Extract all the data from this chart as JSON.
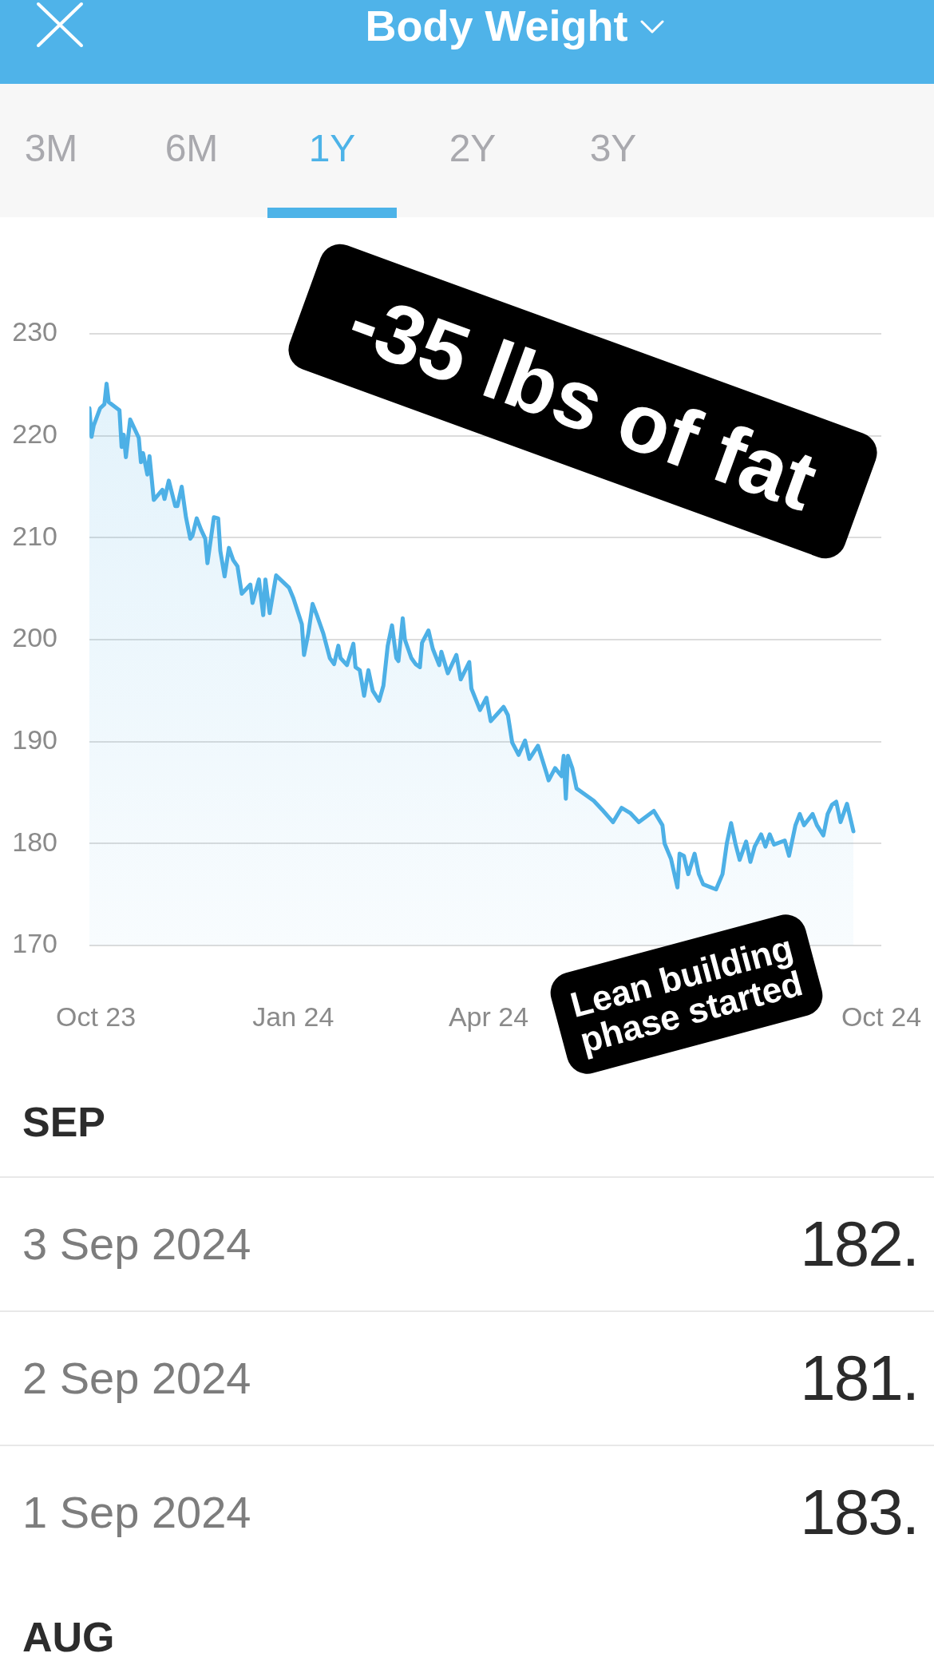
{
  "chart_data": {
    "type": "area",
    "title": "Body Weight",
    "x": [
      "2023-09-28",
      "2023-09-29",
      "2023-09-30",
      "2023-10-03",
      "2023-10-05",
      "2023-10-06",
      "2023-10-07",
      "2023-10-12",
      "2023-10-13",
      "2023-10-14",
      "2023-10-15",
      "2023-10-17",
      "2023-10-21",
      "2023-10-22",
      "2023-10-23",
      "2023-10-25",
      "2023-10-26",
      "2023-10-28",
      "2023-11-01",
      "2023-11-02",
      "2023-11-04",
      "2023-11-07",
      "2023-11-08",
      "2023-11-10",
      "2023-11-12",
      "2023-11-14",
      "2023-11-15",
      "2023-11-17",
      "2023-11-19",
      "2023-11-21",
      "2023-11-22",
      "2023-11-23",
      "2023-11-25",
      "2023-11-27",
      "2023-11-28",
      "2023-11-30",
      "2023-12-02",
      "2023-12-04",
      "2023-12-06",
      "2023-12-08",
      "2023-12-12",
      "2023-12-13",
      "2023-12-16",
      "2023-12-18",
      "2023-12-19",
      "2023-12-21",
      "2023-12-24",
      "2023-12-30",
      "2024-01-01",
      "2024-01-05",
      "2024-01-06",
      "2024-01-08",
      "2024-01-10",
      "2024-01-12",
      "2024-01-15",
      "2024-01-18",
      "2024-01-20",
      "2024-01-22",
      "2024-01-23",
      "2024-01-26",
      "2024-01-29",
      "2024-01-30",
      "2024-02-01",
      "2024-02-03",
      "2024-02-05",
      "2024-02-07",
      "2024-02-10",
      "2024-02-12",
      "2024-02-14",
      "2024-02-16",
      "2024-02-18",
      "2024-02-19",
      "2024-02-21",
      "2024-02-22",
      "2024-02-25",
      "2024-02-27",
      "2024-02-29",
      "2024-03-01",
      "2024-03-04",
      "2024-03-06",
      "2024-03-09",
      "2024-03-10",
      "2024-03-13",
      "2024-03-17",
      "2024-03-19",
      "2024-03-23",
      "2024-03-24",
      "2024-03-28",
      "2024-03-31",
      "2024-04-02",
      "2024-04-08",
      "2024-04-10",
      "2024-04-12",
      "2024-04-15",
      "2024-04-18",
      "2024-04-20",
      "2024-04-24",
      "2024-04-28",
      "2024-04-29",
      "2024-05-02",
      "2024-05-05",
      "2024-05-06",
      "2024-05-07",
      "2024-05-08",
      "2024-05-10",
      "2024-05-12",
      "2024-05-20",
      "2024-05-24",
      "2024-05-29",
      "2024-06-02",
      "2024-06-06",
      "2024-06-10",
      "2024-06-17",
      "2024-06-21",
      "2024-06-22",
      "2024-06-25",
      "2024-06-28",
      "2024-06-29",
      "2024-07-01",
      "2024-07-03",
      "2024-07-06",
      "2024-07-08",
      "2024-07-10",
      "2024-07-16",
      "2024-07-19",
      "2024-07-21",
      "2024-07-23",
      "2024-07-25",
      "2024-07-27",
      "2024-07-30",
      "2024-08-01",
      "2024-08-03",
      "2024-08-06",
      "2024-08-08",
      "2024-08-10",
      "2024-08-12",
      "2024-08-17",
      "2024-08-19",
      "2024-08-22",
      "2024-08-24",
      "2024-08-26",
      "2024-08-30",
      "2024-09-01",
      "2024-09-04",
      "2024-09-06",
      "2024-09-08",
      "2024-09-10",
      "2024-09-12",
      "2024-09-15",
      "2024-09-18"
    ],
    "values": [
      222.7,
      219.9,
      221.0,
      222.7,
      223.1,
      225.1,
      223.3,
      222.5,
      218.9,
      220.1,
      217.9,
      221.6,
      219.8,
      217.4,
      218.3,
      216.2,
      218.0,
      213.7,
      214.7,
      213.8,
      215.6,
      213.1,
      213.1,
      215.0,
      212.0,
      209.9,
      210.2,
      211.9,
      210.8,
      209.9,
      207.5,
      209.0,
      212.0,
      211.9,
      208.7,
      206.2,
      209.0,
      207.8,
      207.2,
      204.5,
      205.4,
      203.6,
      205.9,
      202.4,
      205.9,
      202.6,
      206.3,
      205.1,
      204.1,
      201.5,
      198.5,
      200.6,
      203.5,
      202.4,
      200.6,
      198.2,
      197.6,
      199.4,
      198.2,
      197.5,
      199.6,
      197.3,
      197.0,
      194.5,
      197.0,
      195.0,
      194.0,
      195.5,
      199.4,
      201.4,
      198.2,
      197.9,
      202.1,
      200.0,
      198.2,
      197.6,
      197.3,
      199.7,
      200.9,
      199.1,
      197.5,
      198.8,
      196.7,
      198.5,
      196.1,
      197.8,
      195.2,
      193.1,
      194.3,
      192.0,
      193.4,
      192.6,
      189.9,
      188.7,
      190.1,
      188.3,
      189.6,
      186.9,
      186.2,
      187.4,
      186.6,
      188.6,
      184.4,
      188.6,
      187.4,
      185.4,
      184.2,
      183.3,
      182.1,
      183.5,
      183.0,
      182.1,
      183.2,
      181.8,
      180.0,
      178.5,
      175.7,
      179.0,
      178.8,
      177.0,
      179.0,
      177.0,
      176.0,
      175.5,
      177.0,
      180.0,
      182.0,
      180.0,
      178.4,
      180.2,
      178.2,
      179.7,
      180.9,
      179.7,
      180.9,
      179.9,
      180.3,
      178.8,
      181.8,
      182.9,
      181.8,
      182.9,
      181.8,
      180.8,
      182.9,
      183.8,
      184.1,
      182.1,
      183.9,
      181.2
    ],
    "color": "#4db0e6",
    "xlim": [
      "2023-09-28",
      "2024-10-01"
    ],
    "xticks": [
      {
        "value": "2023-10-01",
        "label": "Oct 23"
      },
      {
        "value": "2024-01-01",
        "label": "Jan 24"
      },
      {
        "value": "2024-04-01",
        "label": "Apr 24"
      },
      {
        "value": "2024-10-01",
        "label": "Oct 24"
      }
    ],
    "ylim": [
      170,
      230
    ],
    "yticks": [
      170,
      180,
      190,
      200,
      210,
      220,
      230
    ],
    "grid": "y",
    "annotations": [
      "3M",
      "6M",
      "1Y",
      "2Y",
      "3Y",
      "-35 lbs of fat",
      "Lean building phase started",
      "SEP",
      "3 Sep 2024",
      "182.",
      "2 Sep 2024",
      "181.",
      "1 Sep 2024",
      "183.",
      "AUG"
    ]
  }
}
